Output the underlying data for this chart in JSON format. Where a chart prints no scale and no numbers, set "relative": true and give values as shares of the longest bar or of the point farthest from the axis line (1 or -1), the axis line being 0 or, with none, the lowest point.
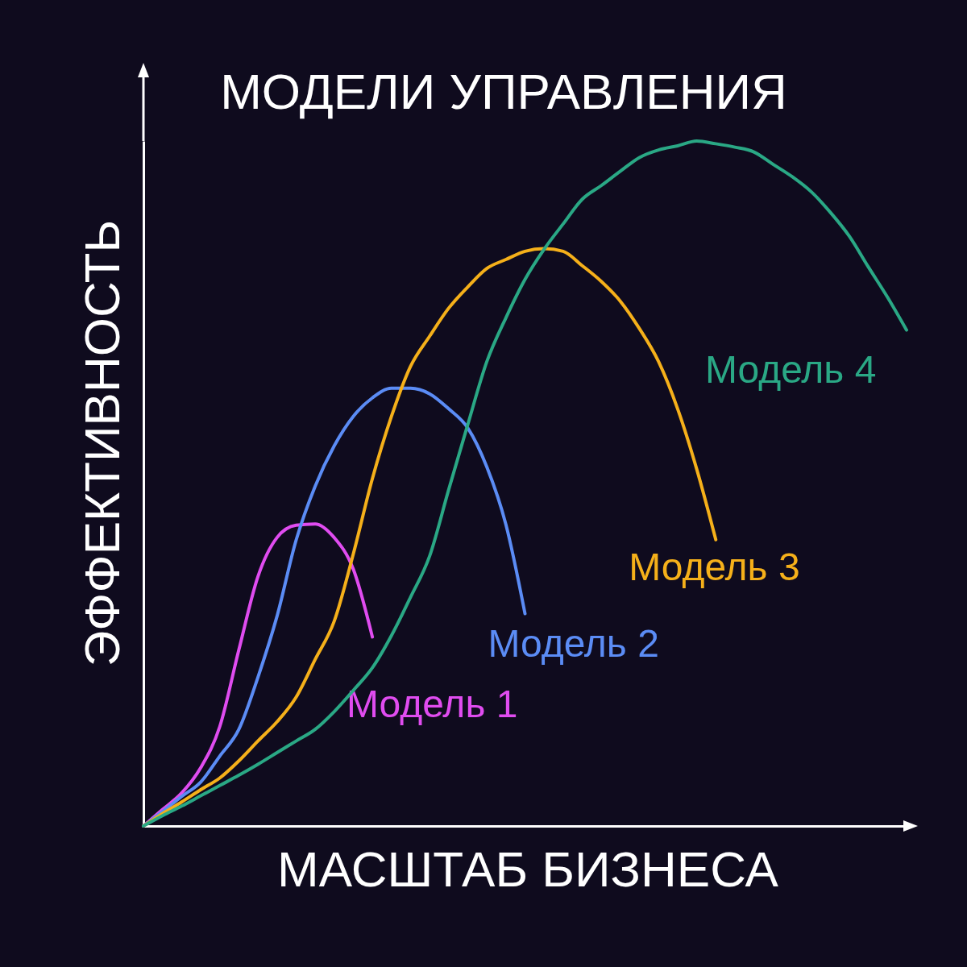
{
  "chart_data": {
    "type": "line",
    "title": "МОДЕЛИ УПРАВЛЕНИЯ",
    "xlabel": "МАСШТАБ БИЗНЕСА",
    "ylabel": "ЭФФЕКТИВНОСТЬ",
    "relative": true,
    "legend": false,
    "marker": "none",
    "line_style": "solid",
    "categories": [
      null,
      null,
      null,
      null,
      null,
      null,
      null,
      null,
      null,
      null,
      null,
      null,
      null,
      null,
      null,
      null,
      null,
      null,
      null,
      null,
      null,
      null,
      null,
      null,
      null,
      null,
      null,
      null,
      null,
      null,
      null,
      null,
      null,
      null,
      null,
      null,
      null,
      null,
      null,
      null,
      null
    ],
    "series": [
      {
        "name": "Модель 1",
        "color": "#e04cf0",
        "values": [
          0,
          0.024,
          0.048,
          0.085,
          0.145,
          0.257,
          0.364,
          0.421,
          0.439,
          0.441,
          0.421,
          0.375,
          0.276,
          null,
          null,
          null,
          null,
          null,
          null,
          null,
          null,
          null,
          null,
          null,
          null,
          null,
          null,
          null,
          null,
          null,
          null,
          null,
          null,
          null,
          null,
          null,
          null,
          null,
          null,
          null,
          null
        ]
      },
      {
        "name": "Модель 2",
        "color": "#5b8cf5",
        "values": [
          0,
          0.021,
          0.043,
          0.064,
          0.102,
          0.141,
          0.217,
          0.306,
          0.417,
          0.496,
          0.555,
          0.598,
          0.625,
          0.639,
          0.639,
          0.631,
          0.609,
          0.581,
          0.524,
          0.44,
          0.31,
          null,
          null,
          null,
          null,
          null,
          null,
          null,
          null,
          null,
          null,
          null,
          null,
          null,
          null,
          null,
          null,
          null,
          null,
          null,
          null
        ]
      },
      {
        "name": "Модель 3",
        "color": "#f5b01a",
        "values": [
          0,
          0.018,
          0.035,
          0.053,
          0.07,
          0.095,
          0.124,
          0.152,
          0.188,
          0.243,
          0.299,
          0.397,
          0.507,
          0.598,
          0.671,
          0.715,
          0.756,
          0.787,
          0.814,
          0.827,
          0.839,
          0.843,
          0.839,
          0.818,
          0.795,
          0.766,
          0.726,
          0.678,
          0.609,
          0.521,
          0.418,
          null,
          null,
          null,
          null,
          null,
          null,
          null,
          null,
          null,
          null
        ]
      },
      {
        "name": "Модель 4",
        "color": "#2aa885",
        "values": [
          0,
          0.015,
          0.029,
          0.044,
          0.059,
          0.074,
          0.09,
          0.107,
          0.124,
          0.141,
          0.167,
          0.198,
          0.231,
          0.278,
          0.334,
          0.394,
          0.491,
          0.586,
          0.678,
          0.742,
          0.798,
          0.842,
          0.879,
          0.915,
          0.935,
          0.956,
          0.976,
          0.987,
          0.993,
          1,
          0.996,
          0.991,
          0.984,
          0.966,
          0.948,
          0.926,
          0.896,
          0.861,
          0.816,
          0.772,
          0.724
        ]
      }
    ]
  }
}
